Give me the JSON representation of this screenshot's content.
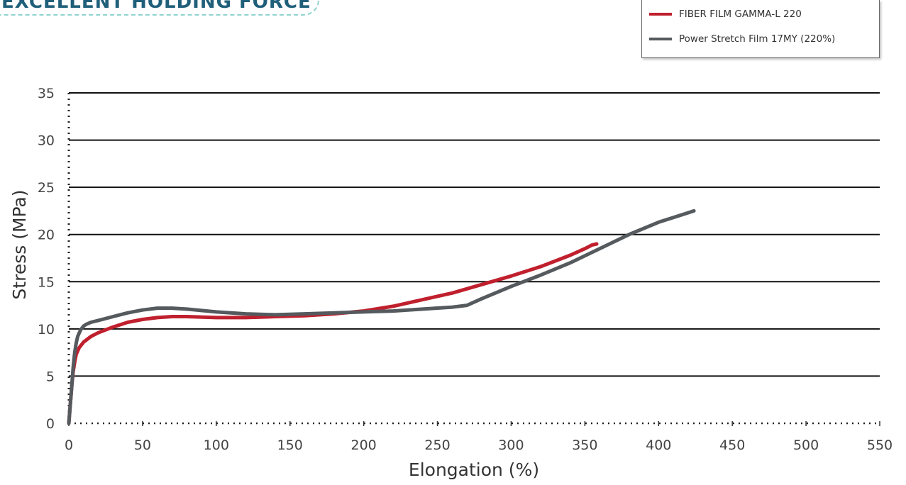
{
  "header": {
    "title": "EXCELLENT HOLDING FORCE"
  },
  "chart_data": {
    "type": "line",
    "title": "",
    "xlabel": "Elongation (%)",
    "ylabel": "Stress (MPa)",
    "xlim": [
      0,
      550
    ],
    "ylim": [
      0,
      35
    ],
    "xticks": [
      0,
      50,
      100,
      150,
      200,
      250,
      300,
      350,
      400,
      450,
      500,
      550
    ],
    "yticks": [
      0,
      5,
      10,
      15,
      20,
      25,
      30,
      35
    ],
    "grid": "horizontal",
    "legend_position": "top-right",
    "series": [
      {
        "name": "FIBER FILM GAMMA-L 220",
        "color": "#c0202e",
        "x": [
          0,
          1,
          2,
          3,
          4,
          5,
          7,
          10,
          15,
          20,
          30,
          40,
          50,
          60,
          70,
          80,
          100,
          120,
          140,
          160,
          180,
          200,
          220,
          240,
          260,
          280,
          300,
          320,
          340,
          350,
          355,
          358
        ],
        "y": [
          0,
          2,
          4,
          5.5,
          6.5,
          7.3,
          8.0,
          8.6,
          9.2,
          9.6,
          10.2,
          10.7,
          11.0,
          11.2,
          11.3,
          11.3,
          11.2,
          11.2,
          11.3,
          11.4,
          11.6,
          11.9,
          12.4,
          13.1,
          13.8,
          14.7,
          15.6,
          16.6,
          17.8,
          18.5,
          18.9,
          19.0
        ]
      },
      {
        "name": "Power Stretch Film 17MY (220%)",
        "color": "#555a5e",
        "x": [
          0,
          1,
          2,
          3,
          4,
          5,
          6,
          8,
          10,
          12,
          15,
          20,
          30,
          40,
          50,
          60,
          70,
          80,
          100,
          120,
          140,
          160,
          180,
          200,
          220,
          240,
          260,
          270,
          280,
          300,
          320,
          340,
          360,
          380,
          400,
          410,
          420,
          424
        ],
        "y": [
          0,
          2,
          4,
          6,
          7.5,
          8.5,
          9.2,
          9.9,
          10.3,
          10.5,
          10.7,
          10.9,
          11.3,
          11.7,
          12.0,
          12.2,
          12.2,
          12.1,
          11.8,
          11.6,
          11.5,
          11.6,
          11.7,
          11.8,
          11.9,
          12.1,
          12.3,
          12.5,
          13.2,
          14.5,
          15.7,
          17.0,
          18.5,
          20.0,
          21.3,
          21.8,
          22.3,
          22.5
        ]
      }
    ]
  }
}
